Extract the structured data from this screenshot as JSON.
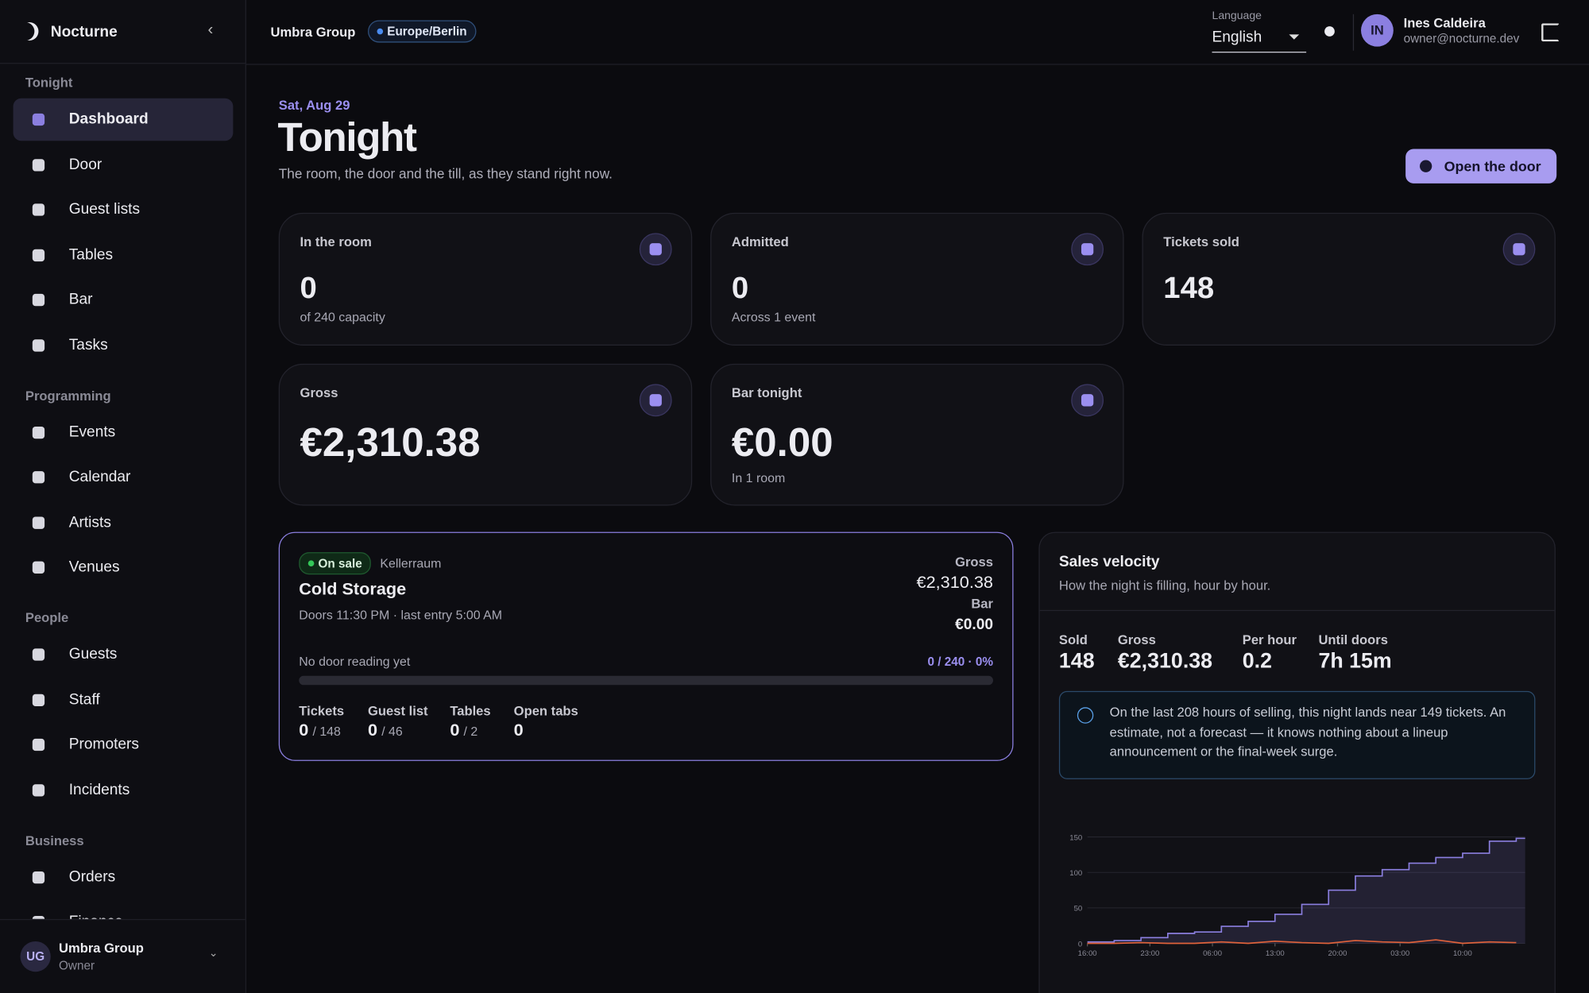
{
  "sidebar": {
    "brand": "Nocturne",
    "sections": [
      {
        "title": "Tonight",
        "items": [
          {
            "label": "Dashboard",
            "active": true
          },
          {
            "label": "Door"
          },
          {
            "label": "Guest lists"
          },
          {
            "label": "Tables"
          },
          {
            "label": "Bar"
          },
          {
            "label": "Tasks"
          }
        ]
      },
      {
        "title": "Programming",
        "items": [
          {
            "label": "Events"
          },
          {
            "label": "Calendar"
          },
          {
            "label": "Artists"
          },
          {
            "label": "Venues"
          }
        ]
      },
      {
        "title": "People",
        "items": [
          {
            "label": "Guests"
          },
          {
            "label": "Staff"
          },
          {
            "label": "Promoters"
          },
          {
            "label": "Incidents"
          }
        ]
      },
      {
        "title": "Business",
        "items": [
          {
            "label": "Orders"
          },
          {
            "label": "Finance"
          }
        ]
      }
    ],
    "org": {
      "initials": "UG",
      "name": "Umbra Group",
      "role": "Owner"
    }
  },
  "header": {
    "org": "Umbra Group",
    "timezone": "Europe/Berlin",
    "language_label": "Language",
    "language": "English",
    "user": {
      "initials": "IN",
      "name": "Ines Caldeira",
      "email": "owner@nocturne.dev"
    }
  },
  "page": {
    "date": "Sat, Aug 29",
    "title": "Tonight",
    "subtitle": "The room, the door and the till, as they stand right now.",
    "action": "Open the door"
  },
  "stats": [
    {
      "label": "In the room",
      "value": "0",
      "note": "of 240 capacity"
    },
    {
      "label": "Admitted",
      "value": "0",
      "note": "Across 1 event"
    },
    {
      "label": "Tickets sold",
      "value": "148"
    },
    {
      "label": "Gross",
      "value": "€2,310.38"
    },
    {
      "label": "Bar tonight",
      "value": "€0.00",
      "note": "In 1 room"
    }
  ],
  "event": {
    "status": "On sale",
    "room": "Kellerraum",
    "name": "Cold Storage",
    "times": "Doors 11:30 PM · last entry 5:00 AM",
    "gross_label": "Gross",
    "gross": "€2,310.38",
    "bar_label": "Bar",
    "bar": "€0.00",
    "door_note": "No door reading yet",
    "door_progress": "0 / 240 · 0%",
    "progress_percent": 0,
    "counts": [
      {
        "label": "Tickets",
        "value": "0",
        "total": "/ 148"
      },
      {
        "label": "Guest list",
        "value": "0",
        "total": "/ 46"
      },
      {
        "label": "Tables",
        "value": "0",
        "total": "/ 2"
      },
      {
        "label": "Open tabs",
        "value": "0"
      }
    ]
  },
  "velocity": {
    "title": "Sales velocity",
    "subtitle": "How the night is filling, hour by hour.",
    "metrics": [
      {
        "label": "Sold",
        "value": "148"
      },
      {
        "label": "Gross",
        "value": "€2,310.38"
      },
      {
        "label": "Per hour",
        "value": "0.2"
      },
      {
        "label": "Until doors",
        "value": "7h 15m"
      }
    ],
    "note": "On the last 208 hours of selling, this night lands near 149 tickets. An estimate, not a forecast — it knows nothing about a lineup announcement or the final-week surge."
  },
  "chart_data": {
    "type": "line",
    "x": [
      0,
      3,
      6,
      9,
      12,
      15,
      18,
      21,
      24,
      27,
      30,
      33,
      36,
      39,
      42,
      45,
      48
    ],
    "series": [
      {
        "color": "#8b7fe0",
        "values": [
          2,
          4,
          8,
          14,
          16,
          24,
          31,
          41,
          55,
          75,
          95,
          104,
          113,
          121,
          127,
          144,
          148
        ]
      },
      {
        "color": "#e0623a",
        "values": [
          0,
          0,
          1,
          0,
          0,
          2,
          0,
          3,
          1,
          0,
          4,
          2,
          1,
          5,
          0,
          2,
          1
        ]
      }
    ],
    "xlim": [
      0,
      49
    ],
    "xticks": [
      {
        "value": 0,
        "label": "16:00"
      },
      {
        "value": 7,
        "label": "23:00"
      },
      {
        "value": 14,
        "label": "06:00"
      },
      {
        "value": 21,
        "label": "13:00"
      },
      {
        "value": 28,
        "label": "20:00"
      },
      {
        "value": 35,
        "label": "03:00"
      },
      {
        "value": 42,
        "label": "10:00"
      }
    ],
    "ylim": [
      0,
      150
    ],
    "yticks": [
      0,
      50,
      100,
      150
    ],
    "grid": true
  }
}
